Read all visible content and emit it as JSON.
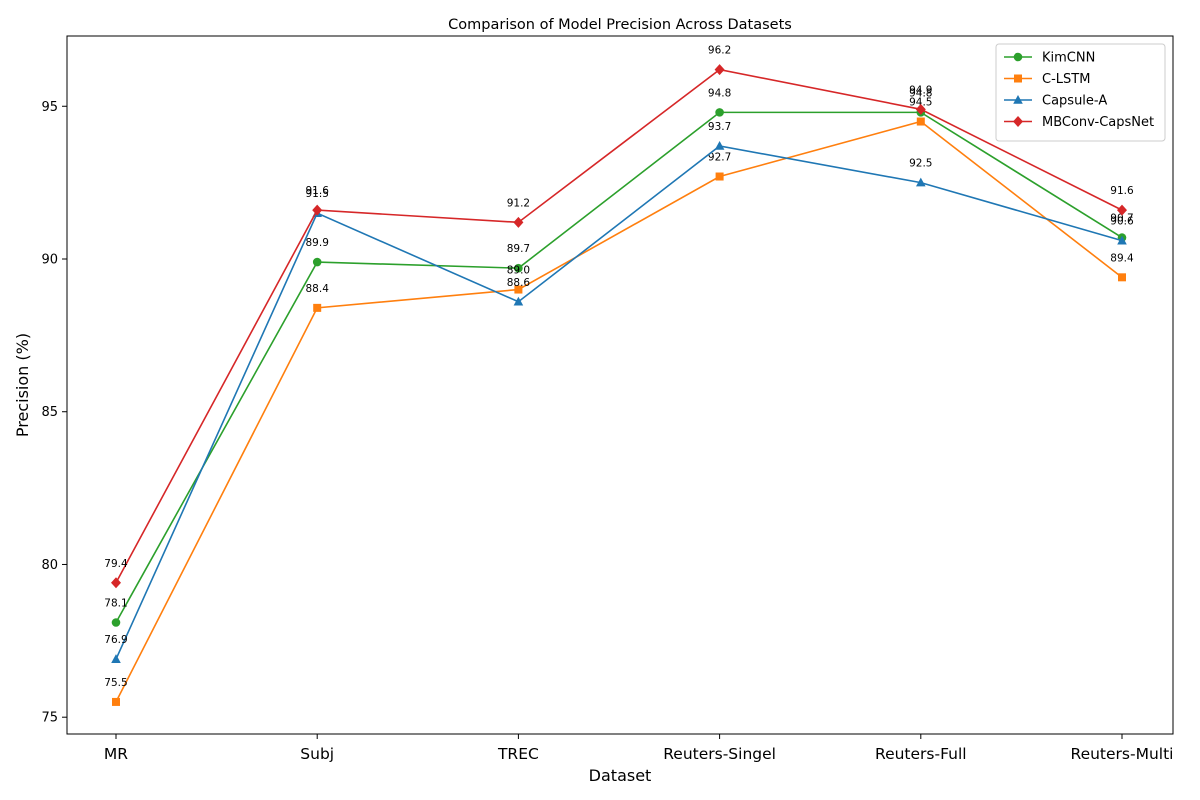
{
  "chart_data": {
    "type": "line",
    "title": "Comparison of Model Precision Across Datasets",
    "xlabel": "Dataset",
    "ylabel": "Precision (%)",
    "categories": [
      "MR",
      "Subj",
      "TREC",
      "Reuters-Singel",
      "Reuters-Full",
      "Reuters-Multi"
    ],
    "ylim": [
      74.45,
      97.3
    ],
    "yticks": [
      75,
      80,
      85,
      90,
      95
    ],
    "grid": false,
    "legend_position": "top-right",
    "series": [
      {
        "name": "KimCNN",
        "values": [
          78.1,
          89.9,
          89.7,
          94.8,
          94.8,
          90.7
        ],
        "color": "#2ca02c",
        "marker": "circle"
      },
      {
        "name": "C-LSTM",
        "values": [
          75.5,
          88.4,
          89.0,
          92.7,
          94.5,
          89.4
        ],
        "color": "#ff7f0e",
        "marker": "square"
      },
      {
        "name": "Capsule-A",
        "values": [
          76.9,
          91.5,
          88.6,
          93.7,
          92.5,
          90.6
        ],
        "color": "#1f77b4",
        "marker": "triangle"
      },
      {
        "name": "MBConv-CapsNet",
        "values": [
          79.4,
          91.6,
          91.2,
          96.2,
          94.9,
          91.6
        ],
        "color": "#d62728",
        "marker": "diamond"
      }
    ]
  }
}
